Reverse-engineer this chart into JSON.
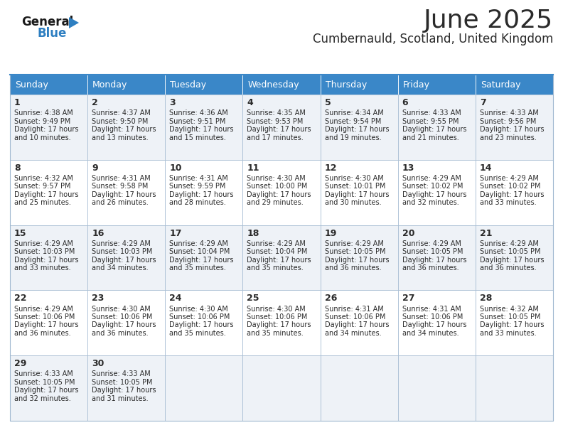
{
  "title": "June 2025",
  "subtitle": "Cumbernauld, Scotland, United Kingdom",
  "header_color": "#3a87c8",
  "header_text_color": "#ffffff",
  "days_of_week": [
    "Sunday",
    "Monday",
    "Tuesday",
    "Wednesday",
    "Thursday",
    "Friday",
    "Saturday"
  ],
  "cell_bg_even": "#eef2f7",
  "cell_bg_odd": "#ffffff",
  "background_color": "#ffffff",
  "border_color": "#a0b8d0",
  "text_color": "#2a2a2a",
  "calendar_data": [
    [
      {
        "day": "1",
        "sunrise": "4:38 AM",
        "sunset": "9:49 PM",
        "daylight_h": "17 hours",
        "daylight_m": "and 10 minutes."
      },
      {
        "day": "2",
        "sunrise": "4:37 AM",
        "sunset": "9:50 PM",
        "daylight_h": "17 hours",
        "daylight_m": "and 13 minutes."
      },
      {
        "day": "3",
        "sunrise": "4:36 AM",
        "sunset": "9:51 PM",
        "daylight_h": "17 hours",
        "daylight_m": "and 15 minutes."
      },
      {
        "day": "4",
        "sunrise": "4:35 AM",
        "sunset": "9:53 PM",
        "daylight_h": "17 hours",
        "daylight_m": "and 17 minutes."
      },
      {
        "day": "5",
        "sunrise": "4:34 AM",
        "sunset": "9:54 PM",
        "daylight_h": "17 hours",
        "daylight_m": "and 19 minutes."
      },
      {
        "day": "6",
        "sunrise": "4:33 AM",
        "sunset": "9:55 PM",
        "daylight_h": "17 hours",
        "daylight_m": "and 21 minutes."
      },
      {
        "day": "7",
        "sunrise": "4:33 AM",
        "sunset": "9:56 PM",
        "daylight_h": "17 hours",
        "daylight_m": "and 23 minutes."
      }
    ],
    [
      {
        "day": "8",
        "sunrise": "4:32 AM",
        "sunset": "9:57 PM",
        "daylight_h": "17 hours",
        "daylight_m": "and 25 minutes."
      },
      {
        "day": "9",
        "sunrise": "4:31 AM",
        "sunset": "9:58 PM",
        "daylight_h": "17 hours",
        "daylight_m": "and 26 minutes."
      },
      {
        "day": "10",
        "sunrise": "4:31 AM",
        "sunset": "9:59 PM",
        "daylight_h": "17 hours",
        "daylight_m": "and 28 minutes."
      },
      {
        "day": "11",
        "sunrise": "4:30 AM",
        "sunset": "10:00 PM",
        "daylight_h": "17 hours",
        "daylight_m": "and 29 minutes."
      },
      {
        "day": "12",
        "sunrise": "4:30 AM",
        "sunset": "10:01 PM",
        "daylight_h": "17 hours",
        "daylight_m": "and 30 minutes."
      },
      {
        "day": "13",
        "sunrise": "4:29 AM",
        "sunset": "10:02 PM",
        "daylight_h": "17 hours",
        "daylight_m": "and 32 minutes."
      },
      {
        "day": "14",
        "sunrise": "4:29 AM",
        "sunset": "10:02 PM",
        "daylight_h": "17 hours",
        "daylight_m": "and 33 minutes."
      }
    ],
    [
      {
        "day": "15",
        "sunrise": "4:29 AM",
        "sunset": "10:03 PM",
        "daylight_h": "17 hours",
        "daylight_m": "and 33 minutes."
      },
      {
        "day": "16",
        "sunrise": "4:29 AM",
        "sunset": "10:03 PM",
        "daylight_h": "17 hours",
        "daylight_m": "and 34 minutes."
      },
      {
        "day": "17",
        "sunrise": "4:29 AM",
        "sunset": "10:04 PM",
        "daylight_h": "17 hours",
        "daylight_m": "and 35 minutes."
      },
      {
        "day": "18",
        "sunrise": "4:29 AM",
        "sunset": "10:04 PM",
        "daylight_h": "17 hours",
        "daylight_m": "and 35 minutes."
      },
      {
        "day": "19",
        "sunrise": "4:29 AM",
        "sunset": "10:05 PM",
        "daylight_h": "17 hours",
        "daylight_m": "and 36 minutes."
      },
      {
        "day": "20",
        "sunrise": "4:29 AM",
        "sunset": "10:05 PM",
        "daylight_h": "17 hours",
        "daylight_m": "and 36 minutes."
      },
      {
        "day": "21",
        "sunrise": "4:29 AM",
        "sunset": "10:05 PM",
        "daylight_h": "17 hours",
        "daylight_m": "and 36 minutes."
      }
    ],
    [
      {
        "day": "22",
        "sunrise": "4:29 AM",
        "sunset": "10:06 PM",
        "daylight_h": "17 hours",
        "daylight_m": "and 36 minutes."
      },
      {
        "day": "23",
        "sunrise": "4:30 AM",
        "sunset": "10:06 PM",
        "daylight_h": "17 hours",
        "daylight_m": "and 36 minutes."
      },
      {
        "day": "24",
        "sunrise": "4:30 AM",
        "sunset": "10:06 PM",
        "daylight_h": "17 hours",
        "daylight_m": "and 35 minutes."
      },
      {
        "day": "25",
        "sunrise": "4:30 AM",
        "sunset": "10:06 PM",
        "daylight_h": "17 hours",
        "daylight_m": "and 35 minutes."
      },
      {
        "day": "26",
        "sunrise": "4:31 AM",
        "sunset": "10:06 PM",
        "daylight_h": "17 hours",
        "daylight_m": "and 34 minutes."
      },
      {
        "day": "27",
        "sunrise": "4:31 AM",
        "sunset": "10:06 PM",
        "daylight_h": "17 hours",
        "daylight_m": "and 34 minutes."
      },
      {
        "day": "28",
        "sunrise": "4:32 AM",
        "sunset": "10:05 PM",
        "daylight_h": "17 hours",
        "daylight_m": "and 33 minutes."
      }
    ],
    [
      {
        "day": "29",
        "sunrise": "4:33 AM",
        "sunset": "10:05 PM",
        "daylight_h": "17 hours",
        "daylight_m": "and 32 minutes."
      },
      {
        "day": "30",
        "sunrise": "4:33 AM",
        "sunset": "10:05 PM",
        "daylight_h": "17 hours",
        "daylight_m": "and 31 minutes."
      },
      null,
      null,
      null,
      null,
      null
    ]
  ],
  "logo_color_general": "#1a1a1a",
  "logo_color_blue": "#2e7fc1",
  "title_fontsize": 26,
  "subtitle_fontsize": 12,
  "header_fontsize": 9,
  "day_num_fontsize": 9,
  "cell_text_fontsize": 7
}
